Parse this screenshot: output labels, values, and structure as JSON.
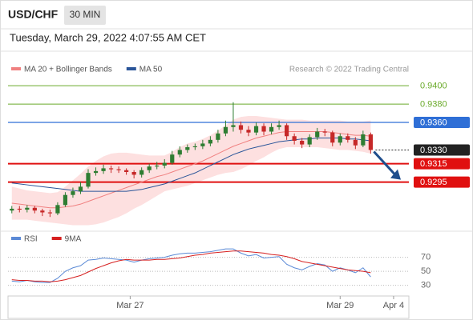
{
  "header": {
    "symbol": "USD/CHF",
    "interval": "30 MIN",
    "timestamp": "Tuesday, March 29, 2022 4:07:55 AM CET"
  },
  "chart_data": [
    {
      "type": "candlestick",
      "source": "Research © 2022 Trading Central",
      "xlim": [
        -0.5,
        52
      ],
      "ylim": [
        0.9245,
        0.9428
      ],
      "up_color": "#2e7d32",
      "down_color": "#c62828",
      "open": [
        0.9264,
        0.9266,
        0.9265,
        0.9267,
        0.9264,
        0.9262,
        0.9261,
        0.927,
        0.9281,
        0.9285,
        0.929,
        0.9305,
        0.9307,
        0.931,
        0.9309,
        0.9308,
        0.9306,
        0.9303,
        0.9308,
        0.9312,
        0.9313,
        0.9316,
        0.9325,
        0.933,
        0.9333,
        0.9334,
        0.9337,
        0.9341,
        0.9348,
        0.9355,
        0.9357,
        0.9352,
        0.9349,
        0.9356,
        0.935,
        0.9355,
        0.9357,
        0.9345,
        0.934,
        0.9336,
        0.9344,
        0.935,
        0.9349,
        0.9338,
        0.9345,
        0.9341,
        0.9335,
        0.9347
      ],
      "high": [
        0.9269,
        0.9269,
        0.927,
        0.9269,
        0.9266,
        0.9265,
        0.9273,
        0.9284,
        0.9289,
        0.9295,
        0.9309,
        0.9311,
        0.9314,
        0.9313,
        0.9312,
        0.931,
        0.9308,
        0.9311,
        0.9315,
        0.9317,
        0.932,
        0.9329,
        0.9334,
        0.9336,
        0.9337,
        0.9341,
        0.9345,
        0.9352,
        0.9362,
        0.9382,
        0.9361,
        0.9356,
        0.936,
        0.9359,
        0.9359,
        0.9362,
        0.9359,
        0.9348,
        0.9343,
        0.9347,
        0.9354,
        0.9353,
        0.9351,
        0.9348,
        0.9348,
        0.9344,
        0.9351,
        0.9349
      ],
      "low": [
        0.9261,
        0.9262,
        0.9262,
        0.9261,
        0.9258,
        0.9257,
        0.9259,
        0.9268,
        0.9278,
        0.9282,
        0.9288,
        0.9302,
        0.9304,
        0.9305,
        0.9305,
        0.9303,
        0.9299,
        0.93,
        0.9305,
        0.9309,
        0.931,
        0.9314,
        0.9322,
        0.9327,
        0.933,
        0.9331,
        0.9334,
        0.9338,
        0.9345,
        0.935,
        0.9348,
        0.9345,
        0.9346,
        0.9346,
        0.9347,
        0.9352,
        0.9341,
        0.9336,
        0.9332,
        0.9333,
        0.9341,
        0.9345,
        0.9334,
        0.9335,
        0.9338,
        0.9331,
        0.9333,
        0.9326
      ],
      "close": [
        0.9266,
        0.9265,
        0.9267,
        0.9264,
        0.9262,
        0.9261,
        0.927,
        0.9281,
        0.9285,
        0.929,
        0.9305,
        0.9307,
        0.931,
        0.9309,
        0.9308,
        0.9306,
        0.9303,
        0.9308,
        0.9312,
        0.9313,
        0.9316,
        0.9325,
        0.933,
        0.9333,
        0.9334,
        0.9337,
        0.9341,
        0.9348,
        0.9355,
        0.9357,
        0.9352,
        0.9349,
        0.9356,
        0.935,
        0.9355,
        0.9357,
        0.9345,
        0.934,
        0.9336,
        0.9344,
        0.935,
        0.9349,
        0.9338,
        0.9345,
        0.9341,
        0.9335,
        0.9347,
        0.933
      ],
      "series": [
        {
          "name": "MA 20 + Bollinger Bands",
          "color": "#f08080",
          "band_color": "#fde0e0",
          "values": [
            0.9272,
            0.9271,
            0.927,
            0.9269,
            0.9268,
            0.9267,
            0.9267,
            0.9268,
            0.9269,
            0.9271,
            0.9274,
            0.9277,
            0.928,
            0.9283,
            0.9286,
            0.9289,
            0.9292,
            0.9295,
            0.9298,
            0.9301,
            0.9303,
            0.9306,
            0.9309,
            0.9312,
            0.9315,
            0.9318,
            0.9322,
            0.9326,
            0.933,
            0.9334,
            0.9337,
            0.934,
            0.9343,
            0.9345,
            0.9347,
            0.9349,
            0.935,
            0.935,
            0.935,
            0.935,
            0.935,
            0.935,
            0.9349,
            0.9348,
            0.9347,
            0.9346,
            0.9346,
            0.9345
          ],
          "upper": [
            0.929,
            0.9288,
            0.9286,
            0.9285,
            0.9284,
            0.9283,
            0.9284,
            0.929,
            0.9297,
            0.9304,
            0.9312,
            0.9318,
            0.9323,
            0.9326,
            0.9327,
            0.9327,
            0.9326,
            0.9325,
            0.9324,
            0.9324,
            0.9324,
            0.9328,
            0.9333,
            0.9337,
            0.9339,
            0.9342,
            0.9346,
            0.9351,
            0.9357,
            0.9363,
            0.9366,
            0.9367,
            0.9367,
            0.9366,
            0.9365,
            0.9364,
            0.9363,
            0.9363,
            0.9363,
            0.9362,
            0.9362,
            0.9362,
            0.9362,
            0.9362,
            0.9361,
            0.9361,
            0.9361,
            0.9362
          ],
          "lower": [
            0.9254,
            0.9254,
            0.9254,
            0.9253,
            0.9252,
            0.9251,
            0.925,
            0.9249,
            0.9248,
            0.9248,
            0.9248,
            0.9249,
            0.9251,
            0.9254,
            0.9257,
            0.9261,
            0.9266,
            0.927,
            0.9275,
            0.928,
            0.9285,
            0.9287,
            0.9289,
            0.9291,
            0.9294,
            0.9297,
            0.93,
            0.9303,
            0.9305,
            0.9306,
            0.9309,
            0.9313,
            0.9318,
            0.9322,
            0.9327,
            0.9331,
            0.9333,
            0.9333,
            0.9333,
            0.9333,
            0.9333,
            0.9332,
            0.9331,
            0.933,
            0.933,
            0.9329,
            0.9328,
            0.9326
          ]
        },
        {
          "name": "MA 50",
          "color": "#2a5599",
          "values": [
            0.9294,
            0.9293,
            0.9292,
            0.9291,
            0.929,
            0.9289,
            0.9288,
            0.9287,
            0.9286,
            0.9285,
            0.9285,
            0.9285,
            0.9285,
            0.9285,
            0.9285,
            0.9285,
            0.9286,
            0.9287,
            0.9289,
            0.9291,
            0.9293,
            0.9296,
            0.9299,
            0.9302,
            0.9305,
            0.9309,
            0.9313,
            0.9317,
            0.9321,
            0.9325,
            0.9328,
            0.9331,
            0.9333,
            0.9335,
            0.9337,
            0.9339,
            0.934,
            0.9341,
            0.9342,
            0.9342,
            0.9343,
            0.9343,
            0.9343,
            0.9343,
            0.9342,
            0.9342,
            0.9341,
            0.934
          ]
        }
      ],
      "levels": [
        {
          "value": 0.94,
          "label": "0.9400",
          "color": "#6aaa2a",
          "badge": false,
          "width": 1
        },
        {
          "value": 0.938,
          "label": "0.9380",
          "color": "#6aaa2a",
          "badge": false,
          "width": 1
        },
        {
          "value": 0.936,
          "label": "0.9360",
          "color": "#2f6fd6",
          "badge": true,
          "width": 1.2
        },
        {
          "value": 0.933,
          "label": "0.9330",
          "color": "#222222",
          "badge": true,
          "width": 1,
          "dashed": true
        },
        {
          "value": 0.9315,
          "label": "0.9315",
          "color": "#e01010",
          "badge": true,
          "width": 2
        },
        {
          "value": 0.9295,
          "label": "0.9295",
          "color": "#e01010",
          "badge": true,
          "width": 2
        }
      ]
    },
    {
      "type": "line",
      "xlim": [
        -0.5,
        52
      ],
      "ylim": [
        17,
        89
      ],
      "yticks": [
        30,
        50,
        70
      ],
      "grid": true,
      "xticks": [
        {
          "value": 15.5,
          "label": "Mar 27"
        },
        {
          "value": 43,
          "label": "Mar 29"
        },
        {
          "value": 50,
          "label": "Apr 4"
        }
      ],
      "series": [
        {
          "name": "RSI",
          "color": "#5b8ad6",
          "values": [
            36,
            35,
            37,
            35,
            34,
            34,
            40,
            50,
            55,
            58,
            66,
            67,
            69,
            68,
            67,
            66,
            63,
            66,
            68,
            69,
            70,
            73,
            75,
            76,
            76,
            77,
            78,
            80,
            82,
            82,
            76,
            72,
            74,
            69,
            70,
            71,
            60,
            55,
            52,
            57,
            61,
            59,
            50,
            55,
            52,
            48,
            55,
            42
          ]
        },
        {
          "name": "9MA",
          "color": "#d62020",
          "values": [
            38,
            37,
            37,
            36,
            36,
            35,
            36,
            38,
            41,
            44,
            49,
            54,
            58,
            62,
            65,
            67,
            66,
            66,
            66,
            67,
            67,
            68,
            69,
            71,
            73,
            74,
            76,
            77,
            78,
            79,
            79,
            78,
            77,
            76,
            74,
            73,
            71,
            68,
            64,
            62,
            60,
            58,
            56,
            54,
            52,
            51,
            50,
            48
          ]
        }
      ]
    }
  ]
}
